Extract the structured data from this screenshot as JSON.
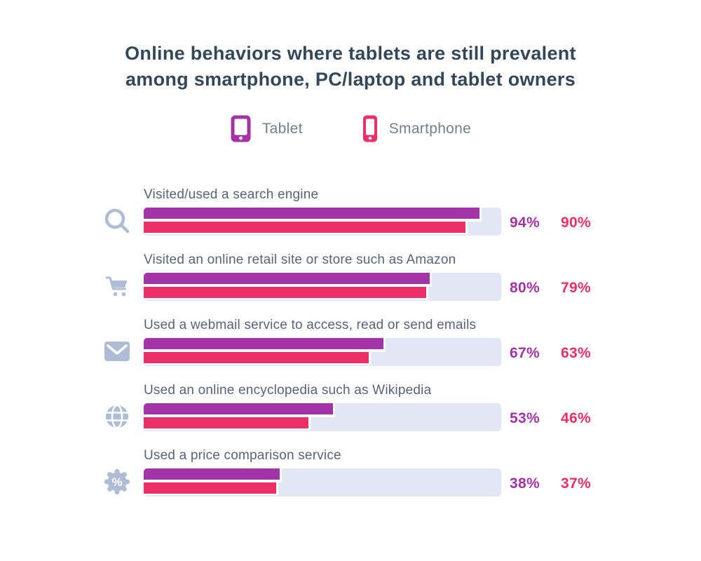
{
  "title": {
    "line1": "Online behaviors where tablets are still prevalent",
    "line2": "among smartphone, PC/laptop and tablet owners"
  },
  "legend": {
    "items": [
      {
        "label": "Tablet",
        "icon": "tablet-icon",
        "color": "#a333a6"
      },
      {
        "label": "Smartphone",
        "icon": "smartphone-icon",
        "color": "#ec2f66"
      }
    ]
  },
  "colors": {
    "tablet": "#a333a6",
    "smartphone": "#ec2f66",
    "track": "#e3e7f4",
    "title_text": "#33475b",
    "row_label_text": "#56637a",
    "legend_text": "#72808f",
    "row_icon": "#afbcd6"
  },
  "chart_data": {
    "type": "bar",
    "orientation": "horizontal",
    "title": "Online behaviors where tablets are still prevalent among smartphone, PC/laptop and tablet owners",
    "unit": "%",
    "xlim": [
      0,
      100
    ],
    "grid": false,
    "legend_position": "top-center",
    "categories": [
      "Visited/used a search engine",
      "Visited an online retail site or store such as Amazon",
      "Used a webmail service to access, read or send emails",
      "Used an online encyclopedia such as Wikipedia",
      "Used a price comparison service"
    ],
    "category_icons": [
      "search-icon",
      "shopping-cart-icon",
      "envelope-icon",
      "globe-icon",
      "discount-badge-icon"
    ],
    "series": [
      {
        "name": "Tablet",
        "color": "#a333a6",
        "values": [
          94,
          80,
          67,
          53,
          38
        ]
      },
      {
        "name": "Smartphone",
        "color": "#ec2f66",
        "values": [
          90,
          79,
          63,
          46,
          37
        ]
      }
    ]
  }
}
